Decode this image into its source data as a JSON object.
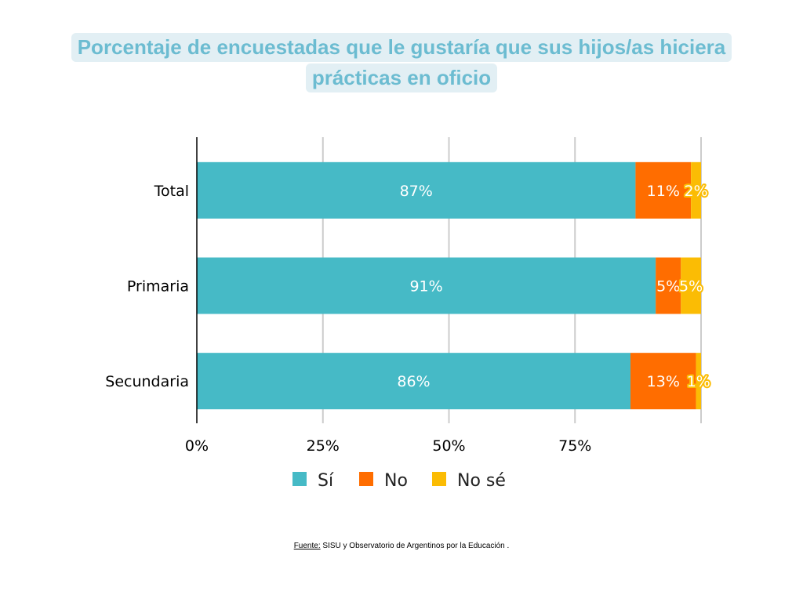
{
  "title_lines": [
    "Porcentaje de encuestadas que le gustaría que sus hijos/as hiciera",
    "prácticas en oficio"
  ],
  "source": {
    "label": "Fuente:",
    "text": " SISU y Observatorio de Argentinos por la Educación ."
  },
  "chart_data": {
    "type": "bar",
    "orientation": "horizontal",
    "stacked": true,
    "title": "Porcentaje de encuestadas que le gustaría que sus hijos/as hiciera prácticas en oficio",
    "categories": [
      "Total",
      "Primaria",
      "Secundaria"
    ],
    "series": [
      {
        "name": "Sí",
        "color": "#46bac6",
        "values": [
          87,
          91,
          86
        ],
        "labels": [
          "87%",
          "91%",
          "86%"
        ]
      },
      {
        "name": "No",
        "color": "#ff6d00",
        "values": [
          11,
          5,
          13
        ],
        "labels": [
          "11%",
          "5%",
          "13%"
        ]
      },
      {
        "name": "No sé",
        "color": "#fbbc04",
        "values": [
          2,
          5,
          1
        ],
        "labels": [
          "2%",
          "5%",
          "1%"
        ]
      }
    ],
    "xlim": [
      0,
      100
    ],
    "xticks": [
      "0%",
      "25%",
      "50%",
      "75%"
    ],
    "grid": true,
    "legend": "bottom"
  }
}
